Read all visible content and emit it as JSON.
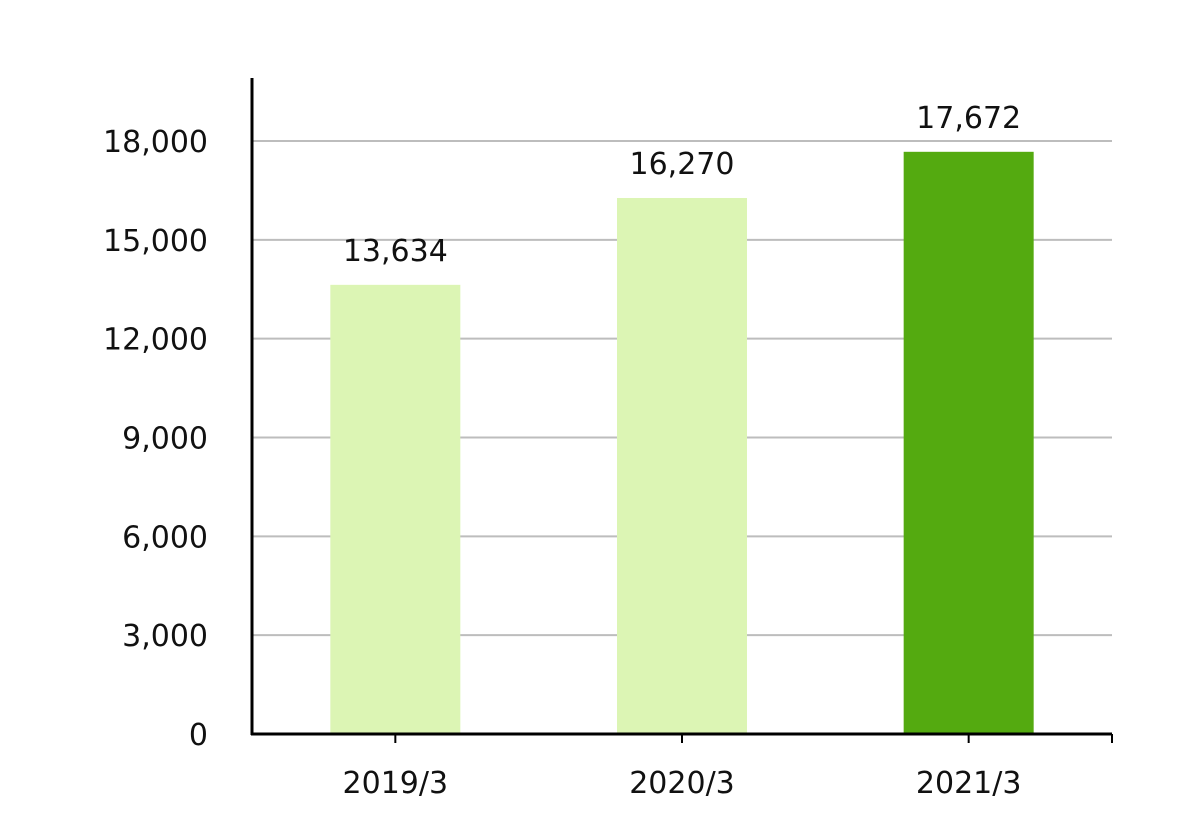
{
  "chart_data": {
    "type": "bar",
    "title": "",
    "xlabel": "",
    "ylabel": "",
    "categories": [
      "2019/3",
      "2020/3",
      "2021/3"
    ],
    "values": [
      13634,
      16270,
      17672
    ],
    "value_labels": [
      "13,634",
      "16,270",
      "17,672"
    ],
    "ylim": [
      0,
      18000
    ],
    "y_ticks": [
      0,
      3000,
      6000,
      9000,
      12000,
      15000,
      18000
    ],
    "y_tick_labels": [
      "0",
      "3,000",
      "6,000",
      "9,000",
      "12,000",
      "15,000",
      "18,000"
    ],
    "grid": true,
    "legend": false,
    "bar_colors": [
      "#dcf5b4",
      "#dcf5b4",
      "#54aa10"
    ],
    "grid_color": "#bdbdbd",
    "axis_color": "#000000"
  }
}
